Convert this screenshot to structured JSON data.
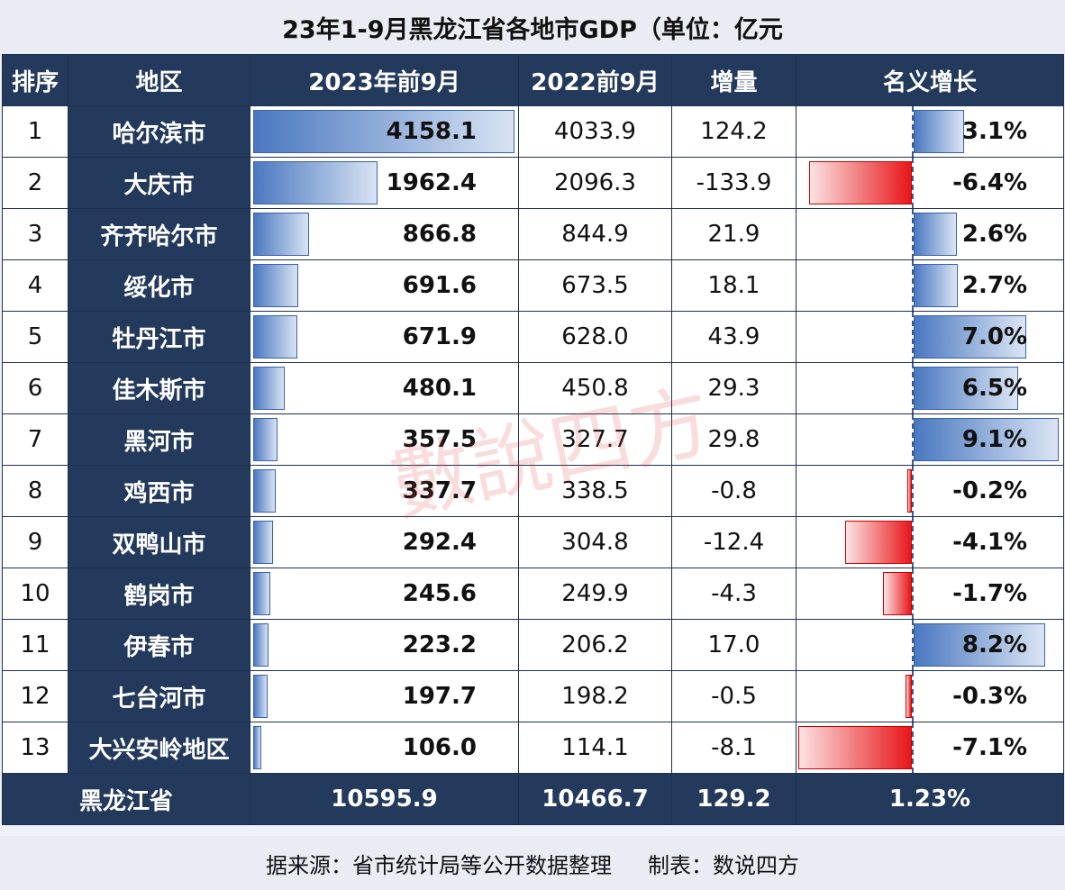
{
  "title": "23年1-9月黑龙江省各地市GDP（单位：亿元",
  "headers": {
    "rank": "排序",
    "region": "地区",
    "cur": "2023年前9月",
    "prev": "2022前9月",
    "inc": "增量",
    "yoy": "名义增长"
  },
  "rows": [
    {
      "rank": "1",
      "region": "哈尔滨市",
      "cur": "4158.1",
      "prev": "4033.9",
      "inc": "124.2",
      "yoy": "3.1%",
      "cur_num": 4158.1,
      "yoy_num": 3.1
    },
    {
      "rank": "2",
      "region": "大庆市",
      "cur": "1962.4",
      "prev": "2096.3",
      "inc": "-133.9",
      "yoy": "-6.4%",
      "cur_num": 1962.4,
      "yoy_num": -6.4
    },
    {
      "rank": "3",
      "region": "齐齐哈尔市",
      "cur": "866.8",
      "prev": "844.9",
      "inc": "21.9",
      "yoy": "2.6%",
      "cur_num": 866.8,
      "yoy_num": 2.6
    },
    {
      "rank": "4",
      "region": "绥化市",
      "cur": "691.6",
      "prev": "673.5",
      "inc": "18.1",
      "yoy": "2.7%",
      "cur_num": 691.6,
      "yoy_num": 2.7
    },
    {
      "rank": "5",
      "region": "牡丹江市",
      "cur": "671.9",
      "prev": "628.0",
      "inc": "43.9",
      "yoy": "7.0%",
      "cur_num": 671.9,
      "yoy_num": 7.0
    },
    {
      "rank": "6",
      "region": "佳木斯市",
      "cur": "480.1",
      "prev": "450.8",
      "inc": "29.3",
      "yoy": "6.5%",
      "cur_num": 480.1,
      "yoy_num": 6.5
    },
    {
      "rank": "7",
      "region": "黑河市",
      "cur": "357.5",
      "prev": "327.7",
      "inc": "29.8",
      "yoy": "9.1%",
      "cur_num": 357.5,
      "yoy_num": 9.1
    },
    {
      "rank": "8",
      "region": "鸡西市",
      "cur": "337.7",
      "prev": "338.5",
      "inc": "-0.8",
      "yoy": "-0.2%",
      "cur_num": 337.7,
      "yoy_num": -0.2
    },
    {
      "rank": "9",
      "region": "双鸭山市",
      "cur": "292.4",
      "prev": "304.8",
      "inc": "-12.4",
      "yoy": "-4.1%",
      "cur_num": 292.4,
      "yoy_num": -4.1
    },
    {
      "rank": "10",
      "region": "鹤岗市",
      "cur": "245.6",
      "prev": "249.9",
      "inc": "-4.3",
      "yoy": "-1.7%",
      "cur_num": 245.6,
      "yoy_num": -1.7
    },
    {
      "rank": "11",
      "region": "伊春市",
      "cur": "223.2",
      "prev": "206.2",
      "inc": "17.0",
      "yoy": "8.2%",
      "cur_num": 223.2,
      "yoy_num": 8.2
    },
    {
      "rank": "12",
      "region": "七台河市",
      "cur": "197.7",
      "prev": "198.2",
      "inc": "-0.5",
      "yoy": "-0.3%",
      "cur_num": 197.7,
      "yoy_num": -0.3
    },
    {
      "rank": "13",
      "region": "大兴安岭地区",
      "cur": "106.0",
      "prev": "114.1",
      "inc": "-8.1",
      "yoy": "-7.1%",
      "cur_num": 106.0,
      "yoy_num": -7.1
    }
  ],
  "total": {
    "region": "黑龙江省",
    "cur": "10595.9",
    "prev": "10466.7",
    "inc": "129.2",
    "yoy": "1.23%"
  },
  "footer": {
    "source": "据来源：省市统计局等公开数据整理",
    "maker": "制表：数说四方"
  },
  "watermark": "數說四方",
  "colors": {
    "header_bg": "#233a5c",
    "bar_blue": "#4a78c0",
    "bar_red": "#e8161a"
  }
}
